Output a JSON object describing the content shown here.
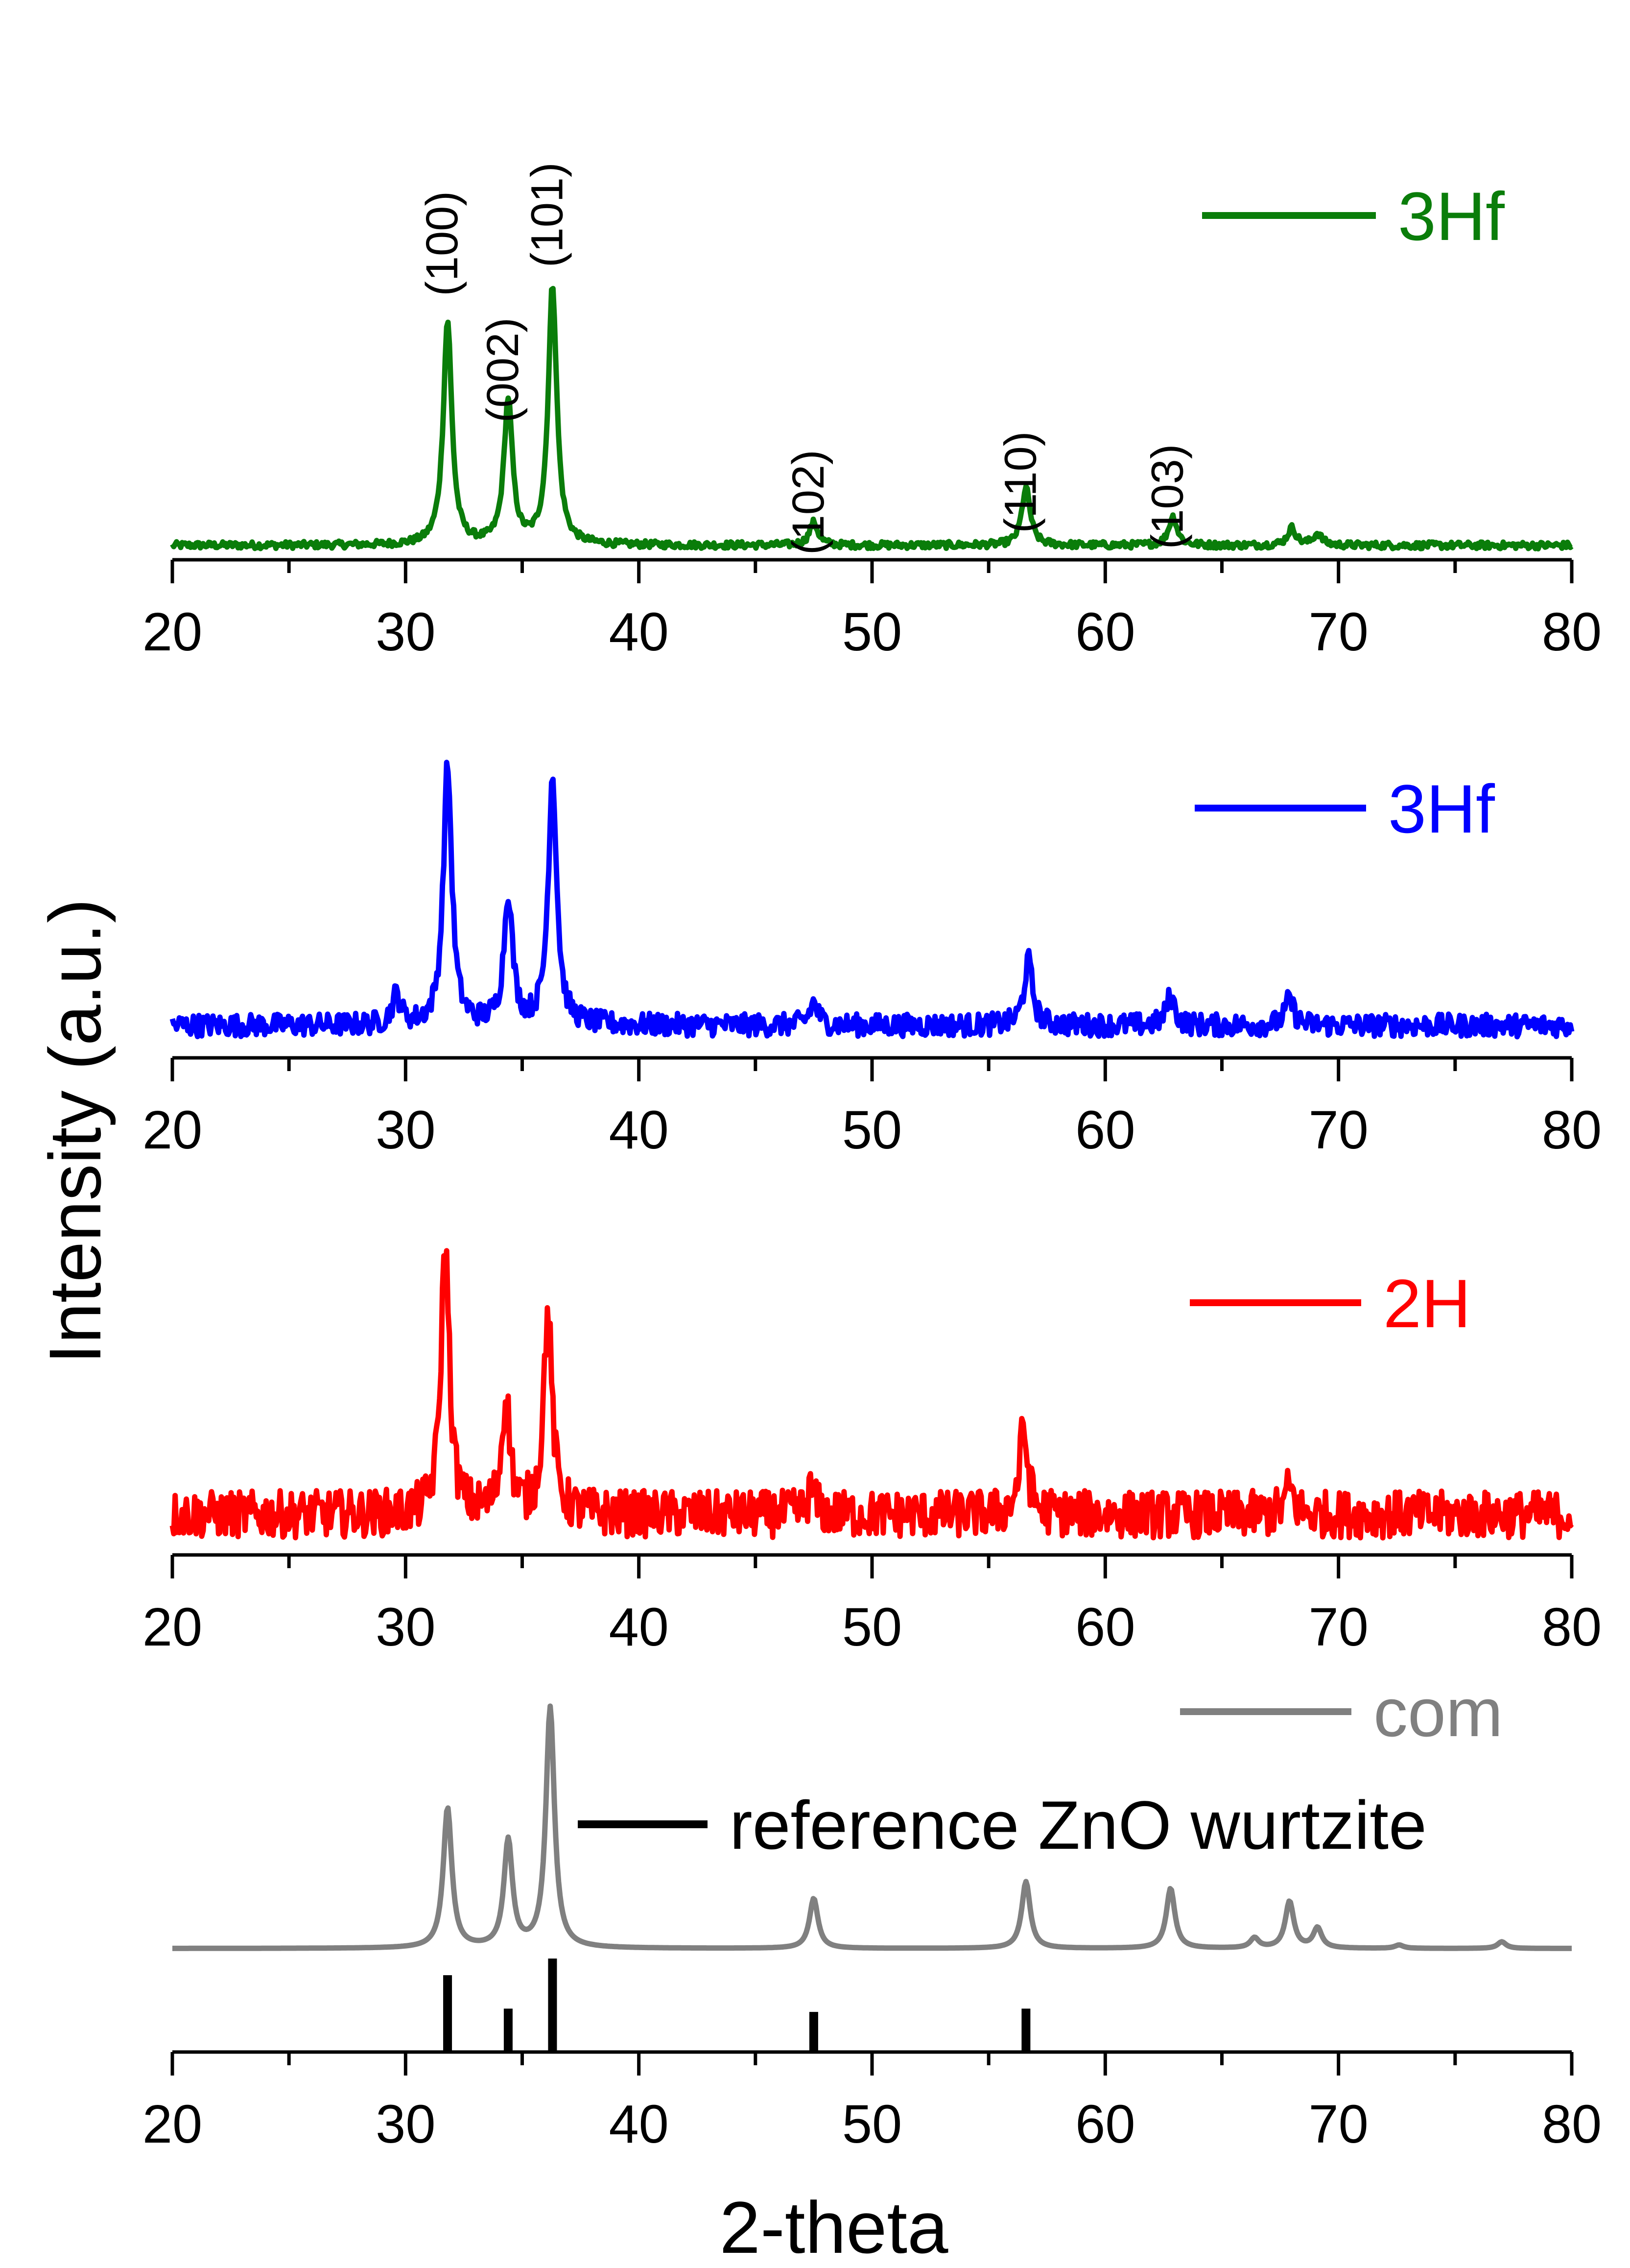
{
  "figure": {
    "ylabel": "Intensity (a.u.)",
    "xlabel": "2-theta"
  },
  "chart_data": [
    {
      "type": "line",
      "series": [
        {
          "name": "3Hf",
          "color": "#0a7d0a",
          "noise": 0.012,
          "baseline": 0.05,
          "peaks": [
            {
              "x": 31.8,
              "h": 0.78
            },
            {
              "x": 34.4,
              "h": 0.5
            },
            {
              "x": 36.3,
              "h": 0.9
            },
            {
              "x": 47.5,
              "h": 0.08
            },
            {
              "x": 56.6,
              "h": 0.2
            },
            {
              "x": 62.9,
              "h": 0.1
            },
            {
              "x": 68.0,
              "h": 0.06
            },
            {
              "x": 69.1,
              "h": 0.04
            }
          ]
        }
      ],
      "annotations": [
        {
          "text": "(100)",
          "x": 31.8,
          "y": 1.1
        },
        {
          "text": "(002)",
          "x": 34.4,
          "y": 0.66
        },
        {
          "text": "(101)",
          "x": 36.3,
          "y": 1.2
        },
        {
          "text": "(102)",
          "x": 47.5,
          "y": 0.2
        },
        {
          "text": "(110)",
          "x": 56.6,
          "y": 0.27
        },
        {
          "text": "(103)",
          "x": 62.9,
          "y": 0.22
        }
      ],
      "xlim": [
        20,
        80
      ],
      "ylim": [
        0,
        1.3
      ],
      "xticks": [
        "20",
        "30",
        "40",
        "50",
        "60",
        "70",
        "80"
      ],
      "legend": "top-right"
    },
    {
      "type": "line",
      "series": [
        {
          "name": "3Hf",
          "color": "#0000ff",
          "noise": 0.035,
          "baseline": 0.1,
          "peaks": [
            {
              "x": 29.6,
              "h": 0.09
            },
            {
              "x": 31.8,
              "h": 0.8
            },
            {
              "x": 34.4,
              "h": 0.4
            },
            {
              "x": 36.3,
              "h": 0.77
            },
            {
              "x": 47.5,
              "h": 0.07
            },
            {
              "x": 56.7,
              "h": 0.2
            },
            {
              "x": 62.8,
              "h": 0.09
            },
            {
              "x": 67.9,
              "h": 0.08
            }
          ]
        }
      ],
      "xlim": [
        20,
        80
      ],
      "ylim": [
        0,
        1.15
      ],
      "xticks": [
        "20",
        "30",
        "40",
        "50",
        "60",
        "70",
        "80"
      ],
      "legend": "top-right"
    },
    {
      "type": "line",
      "series": [
        {
          "name": "2H",
          "color": "#ff0000",
          "noise": 0.07,
          "baseline": 0.12,
          "peaks": [
            {
              "x": 31.7,
              "h": 0.8
            },
            {
              "x": 34.3,
              "h": 0.34
            },
            {
              "x": 36.1,
              "h": 0.6
            },
            {
              "x": 47.4,
              "h": 0.07
            },
            {
              "x": 56.5,
              "h": 0.25
            },
            {
              "x": 67.9,
              "h": 0.08
            }
          ]
        }
      ],
      "xlim": [
        20,
        80
      ],
      "ylim": [
        0,
        1.1
      ],
      "xticks": [
        "20",
        "30",
        "40",
        "50",
        "60",
        "70",
        "80"
      ],
      "legend": "top-right"
    },
    {
      "type": "line",
      "series": [
        {
          "name": "com",
          "color": "#808080",
          "noise": 0.0,
          "baseline": 0.31,
          "peaks": [
            {
              "x": 31.8,
              "h": 0.42
            },
            {
              "x": 34.4,
              "h": 0.32
            },
            {
              "x": 36.2,
              "h": 0.72
            },
            {
              "x": 47.5,
              "h": 0.15
            },
            {
              "x": 56.6,
              "h": 0.2
            },
            {
              "x": 62.8,
              "h": 0.18
            },
            {
              "x": 66.4,
              "h": 0.03
            },
            {
              "x": 67.9,
              "h": 0.14
            },
            {
              "x": 69.1,
              "h": 0.06
            },
            {
              "x": 72.6,
              "h": 0.01
            },
            {
              "x": 77.0,
              "h": 0.02
            }
          ]
        },
        {
          "name": "reference ZnO wurtzite",
          "color": "#000000",
          "type": "stick",
          "x": [
            31.8,
            34.4,
            36.3,
            47.5,
            56.6
          ],
          "values": [
            0.23,
            0.13,
            0.28,
            0.12,
            0.13
          ]
        }
      ],
      "xlim": [
        20,
        80
      ],
      "ylim": [
        0,
        1.1
      ],
      "xticks": [
        "20",
        "30",
        "40",
        "50",
        "60",
        "70",
        "80"
      ],
      "legend": "top-right"
    }
  ]
}
